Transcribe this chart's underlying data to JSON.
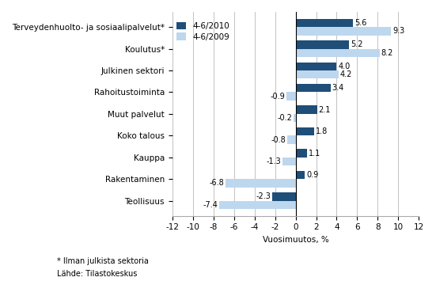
{
  "categories": [
    "Teollisuus",
    "Rakentaminen",
    "Kauppa",
    "Koko talous",
    "Muut palvelut",
    "Rahoitustoiminta",
    "Julkinen sektori",
    "Koulutus*",
    "Terveydenhuolto- ja sosiaalipalvelut*"
  ],
  "values_2010": [
    -2.3,
    0.9,
    1.1,
    1.8,
    2.1,
    3.4,
    4.0,
    5.2,
    5.6
  ],
  "values_2009": [
    -7.4,
    -6.8,
    -1.3,
    -0.8,
    -0.2,
    -0.9,
    4.2,
    8.2,
    9.3
  ],
  "color_2010": "#1F4E79",
  "color_2009": "#BDD7EE",
  "legend_2010": "4-6/2010",
  "legend_2009": "4-6/2009",
  "xlabel": "Vuosimuutos, %",
  "xlim": [
    -12,
    12
  ],
  "xticks": [
    -12,
    -10,
    -8,
    -6,
    -4,
    -2,
    0,
    2,
    4,
    6,
    8,
    10,
    12
  ],
  "footnote1": "* Ilman julkista sektoria",
  "footnote2": "Lähde: Tilastokeskus",
  "bar_height": 0.38,
  "label_fontsize": 7,
  "tick_fontsize": 7.5,
  "legend_fontsize": 7.5
}
